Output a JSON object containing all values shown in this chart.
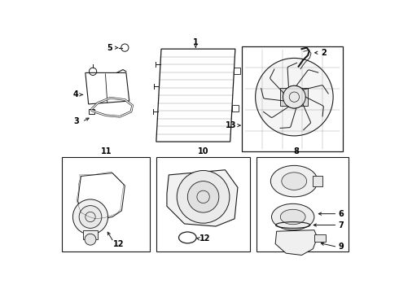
{
  "bg_color": "#ffffff",
  "line_color": "#1a1a1a",
  "label_color": "#000000",
  "fig_width": 4.9,
  "fig_height": 3.6,
  "dpi": 100,
  "font_size": 7.0
}
